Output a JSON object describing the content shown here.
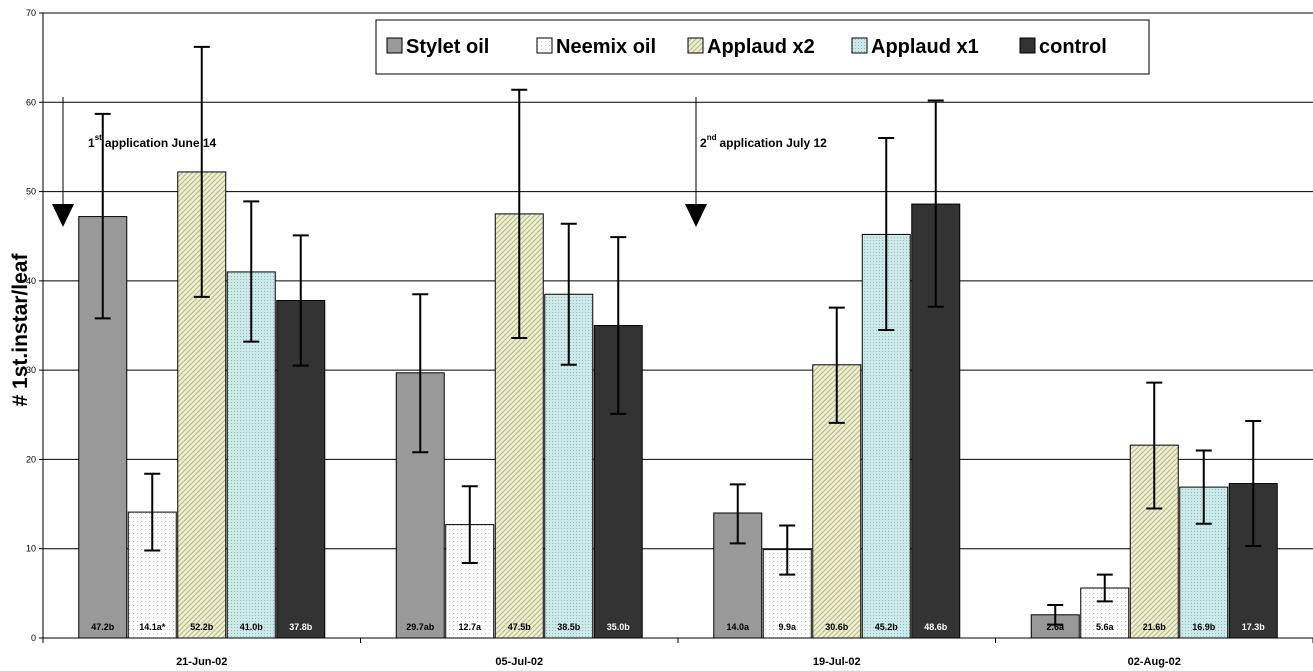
{
  "chart_data": {
    "type": "bar",
    "title": "",
    "xlabel": "",
    "ylabel": "# 1st.instar/leaf",
    "ylim": [
      0,
      70
    ],
    "yticks": [
      0,
      10,
      20,
      30,
      40,
      50,
      60,
      70
    ],
    "grid": true,
    "legend_position": "top-right",
    "categories": [
      "21-Jun-02",
      "05-Jul-02",
      "19-Jul-02",
      "02-Aug-02"
    ],
    "series": [
      {
        "name": "Stylet oil",
        "pattern": "solid",
        "color": "#999999",
        "values": [
          47.2,
          29.7,
          14.0,
          2.6
        ],
        "err_low": [
          35.8,
          20.8,
          10.6,
          1.5
        ],
        "err_high": [
          58.7,
          38.5,
          17.2,
          3.7
        ],
        "labels": [
          "47.2b",
          "29.7ab",
          "14.0a",
          "2.6a"
        ],
        "label_color": "#000000"
      },
      {
        "name": "Neemix oil",
        "pattern": "dots",
        "color": "#ffffff",
        "values": [
          14.1,
          12.7,
          9.9,
          5.6
        ],
        "err_low": [
          9.8,
          8.4,
          7.1,
          4.1
        ],
        "err_high": [
          18.4,
          17.0,
          12.6,
          7.1
        ],
        "labels": [
          "14.1a*",
          "12.7a",
          "9.9a",
          "5.6a"
        ],
        "label_color": "#000000"
      },
      {
        "name": "Applaud x2",
        "pattern": "diagonal",
        "color": "#eeeecc",
        "values": [
          52.2,
          47.5,
          30.6,
          21.6
        ],
        "err_low": [
          38.2,
          33.6,
          24.1,
          14.5
        ],
        "err_high": [
          66.2,
          61.4,
          37.0,
          28.6
        ],
        "labels": [
          "52.2b",
          "47.5b",
          "30.6b",
          "21.6b"
        ],
        "label_color": "#000000"
      },
      {
        "name": "Applaud x1",
        "pattern": "dense-dots",
        "color": "#cdeaea",
        "values": [
          41.0,
          38.5,
          45.2,
          16.9
        ],
        "err_low": [
          33.2,
          30.6,
          34.5,
          12.8
        ],
        "err_high": [
          48.9,
          46.4,
          56.0,
          21.0
        ],
        "labels": [
          "41.0b",
          "38.5b",
          "45.2b",
          "16.9b"
        ],
        "label_color": "#000000"
      },
      {
        "name": "control",
        "pattern": "solid",
        "color": "#333333",
        "values": [
          37.8,
          35.0,
          48.6,
          17.3
        ],
        "err_low": [
          30.5,
          25.1,
          37.1,
          10.3
        ],
        "err_high": [
          45.1,
          44.9,
          60.2,
          24.3
        ],
        "labels": [
          "37.8b",
          "35.0b",
          "48.6b",
          "17.3b"
        ],
        "label_color": "#ffffff"
      }
    ],
    "annotations": [
      {
        "ordinal": "1",
        "suffix": "st",
        "text": "application June 14"
      },
      {
        "ordinal": "2",
        "suffix": "nd",
        "text": "application July 12"
      }
    ]
  }
}
